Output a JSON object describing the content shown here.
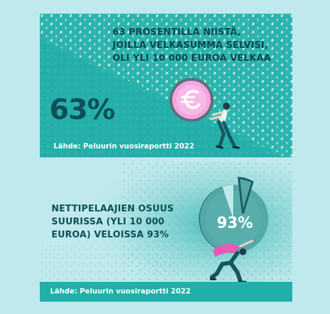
{
  "top_card": {
    "headline": "63 PROSENTILLA NIISTÄ,\nJOILLA VELKASUMMA SELVISI,\nOLI YLI 10 000 EUROA VELKAA",
    "percent": "63%",
    "source": "Lähde: Peluurin vuosiraportti 2022"
  },
  "bottom_card": {
    "headline": "NETTIPELAAJIEN OSUUS\nSUURISSA (YLI 10 000\nEUROA) VELOISSA 93%",
    "percent": "93%",
    "source": "Lähde: Peluurin vuosiraportti 2022"
  },
  "colors": {
    "page_bg": "#bfe9ec",
    "teal": "#27b2ad",
    "dark_teal": "#0b4f56",
    "pink": "#e75ab8",
    "coin_pink": "#f4a6e0",
    "pie_teal": "#52a9a7"
  },
  "icons": [
    "euro-coin-icon",
    "person-pushing-icon",
    "pie-chart-icon",
    "person-carrying-icon"
  ]
}
